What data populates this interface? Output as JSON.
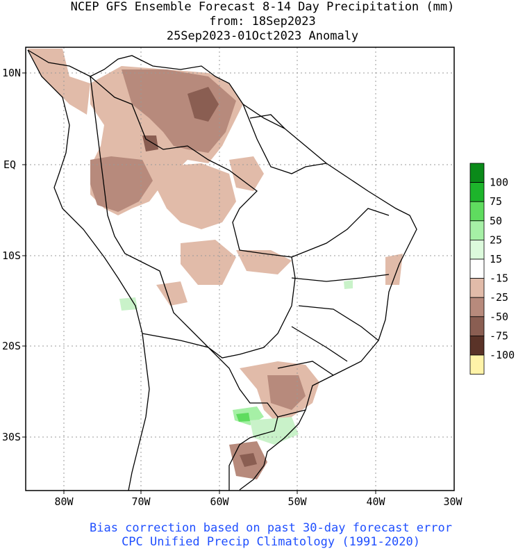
{
  "title": {
    "line1": "NCEP GFS Ensemble Forecast 8-14 Day Precipitation (mm)",
    "line2": "from: 18Sep2023",
    "line3": "25Sep2023-01Oct2023 Anomaly"
  },
  "axes": {
    "lat_labels": [
      "10N",
      "EQ",
      "10S",
      "20S",
      "30S"
    ],
    "lon_labels": [
      "80W",
      "70W",
      "60W",
      "50W",
      "40W",
      "30W"
    ]
  },
  "legend": {
    "levels": [
      {
        "label": "100",
        "color": "#0a8a19"
      },
      {
        "label": "75",
        "color": "#1db42b"
      },
      {
        "label": "50",
        "color": "#5fdc5f"
      },
      {
        "label": "25",
        "color": "#a6f0a6"
      },
      {
        "label": "15",
        "color": "#dcfadc"
      },
      {
        "label": "-15",
        "color": "#ffffff"
      },
      {
        "label": "-25",
        "color": "#e1bba9"
      },
      {
        "label": "-50",
        "color": "#b78a7c"
      },
      {
        "label": "-75",
        "color": "#8a5e52"
      },
      {
        "label": "-100",
        "color": "#5a3328"
      },
      {
        "label": "",
        "color": "#fff3a8"
      }
    ]
  },
  "footer": {
    "line1": "Bias correction based on past 30-day forecast error",
    "line2": "CPC Unified Precip Climatology (1991-2020)",
    "color": "#1f4fff"
  },
  "colors": {
    "dry_light": "#e1bba9",
    "dry_mid": "#b78a7c",
    "dry_dark": "#8a5e52",
    "wet_light": "#c9f2c9",
    "wet_mid": "#5fdc5f"
  }
}
